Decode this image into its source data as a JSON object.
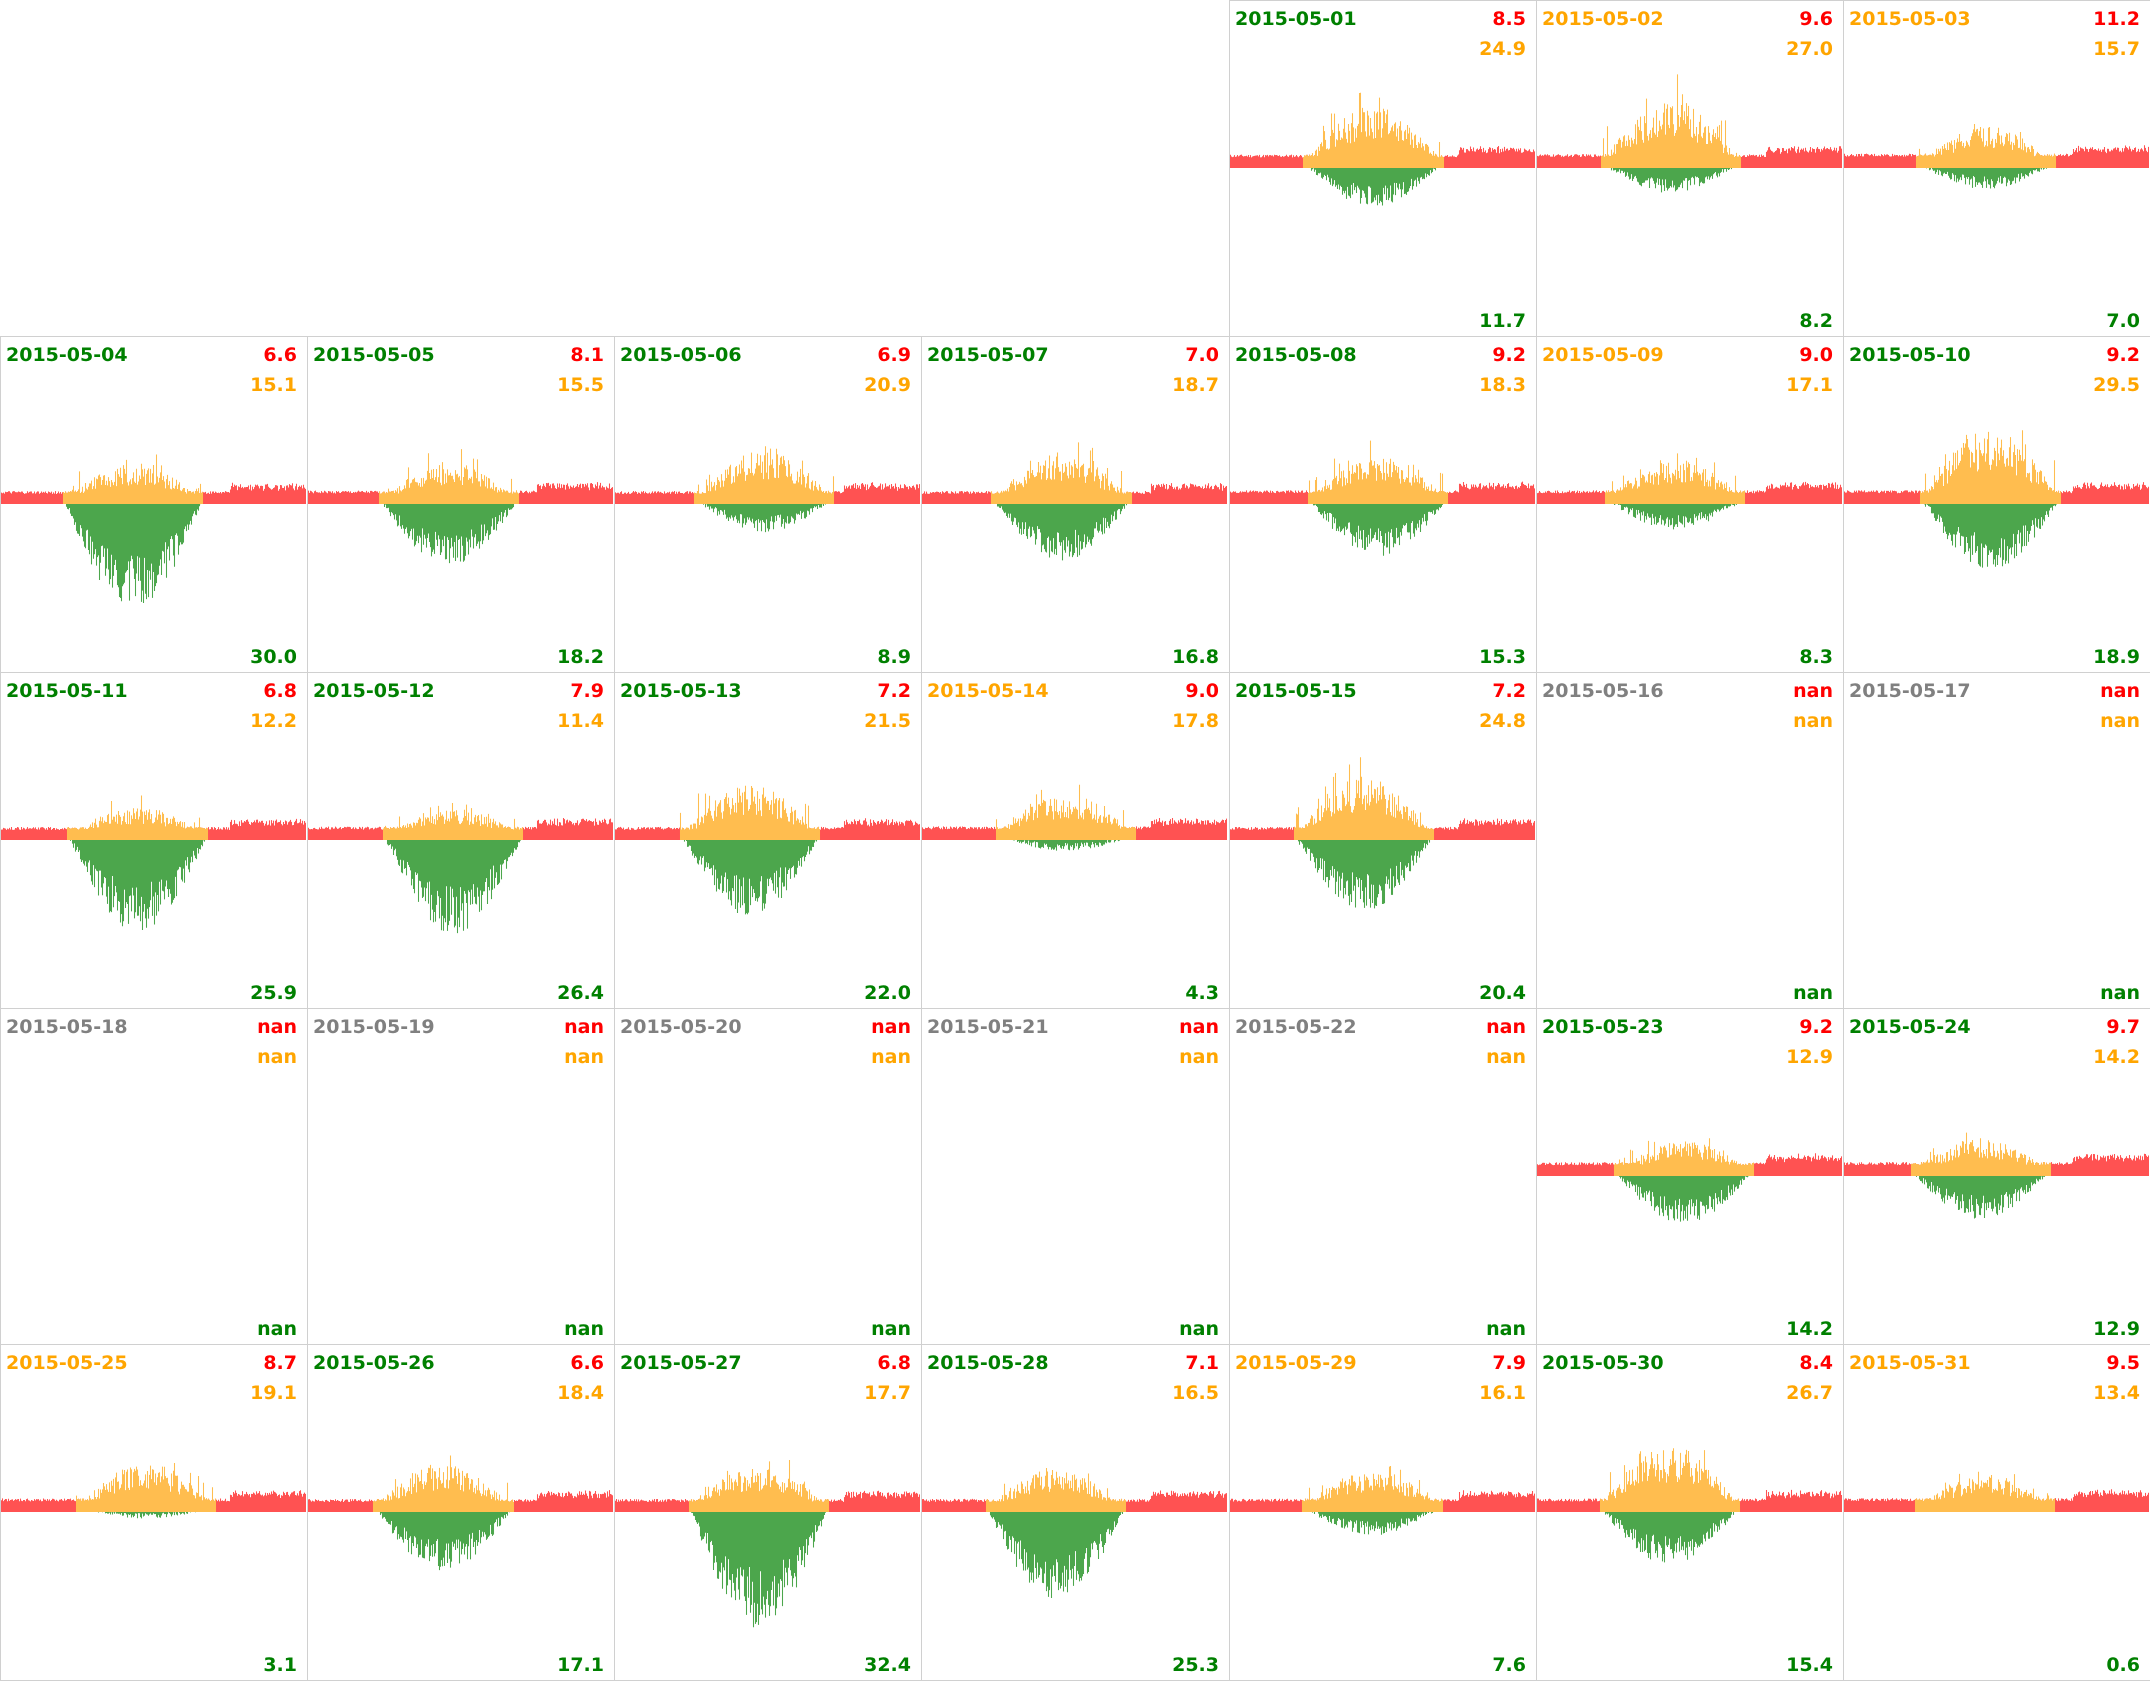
{
  "chart_data": {
    "type": "bar",
    "title": "",
    "layout": "calendar grid, 7 columns, week rows",
    "first_weekday_offset": 4,
    "legend": {
      "value1": "red top-right value",
      "value2": "orange second value",
      "value3": "green bottom value"
    },
    "colors": {
      "date_good": "#008000",
      "date_warn": "#ffa500",
      "date_nan": "#808080",
      "value1": "#ff0000",
      "value2": "#ffa500",
      "value3": "#008000",
      "fill_consumption": "#ff5252",
      "fill_production": "#ffbd4f",
      "fill_export": "#4ca64c"
    },
    "days": [
      {
        "date": "2015-05-01",
        "status": "good",
        "v1": "8.5",
        "v2": "24.9",
        "v3": "11.7"
      },
      {
        "date": "2015-05-02",
        "status": "warn",
        "v1": "9.6",
        "v2": "27.0",
        "v3": "8.2"
      },
      {
        "date": "2015-05-03",
        "status": "warn",
        "v1": "11.2",
        "v2": "15.7",
        "v3": "7.0"
      },
      {
        "date": "2015-05-04",
        "status": "good",
        "v1": "6.6",
        "v2": "15.1",
        "v3": "30.0"
      },
      {
        "date": "2015-05-05",
        "status": "good",
        "v1": "8.1",
        "v2": "15.5",
        "v3": "18.2"
      },
      {
        "date": "2015-05-06",
        "status": "good",
        "v1": "6.9",
        "v2": "20.9",
        "v3": "8.9"
      },
      {
        "date": "2015-05-07",
        "status": "good",
        "v1": "7.0",
        "v2": "18.7",
        "v3": "16.8"
      },
      {
        "date": "2015-05-08",
        "status": "good",
        "v1": "9.2",
        "v2": "18.3",
        "v3": "15.3"
      },
      {
        "date": "2015-05-09",
        "status": "warn",
        "v1": "9.0",
        "v2": "17.1",
        "v3": "8.3"
      },
      {
        "date": "2015-05-10",
        "status": "good",
        "v1": "9.2",
        "v2": "29.5",
        "v3": "18.9"
      },
      {
        "date": "2015-05-11",
        "status": "good",
        "v1": "6.8",
        "v2": "12.2",
        "v3": "25.9"
      },
      {
        "date": "2015-05-12",
        "status": "good",
        "v1": "7.9",
        "v2": "11.4",
        "v3": "26.4"
      },
      {
        "date": "2015-05-13",
        "status": "good",
        "v1": "7.2",
        "v2": "21.5",
        "v3": "22.0"
      },
      {
        "date": "2015-05-14",
        "status": "warn",
        "v1": "9.0",
        "v2": "17.8",
        "v3": "4.3"
      },
      {
        "date": "2015-05-15",
        "status": "good",
        "v1": "7.2",
        "v2": "24.8",
        "v3": "20.4"
      },
      {
        "date": "2015-05-16",
        "status": "nan",
        "v1": "nan",
        "v2": "nan",
        "v3": "nan"
      },
      {
        "date": "2015-05-17",
        "status": "nan",
        "v1": "nan",
        "v2": "nan",
        "v3": "nan"
      },
      {
        "date": "2015-05-18",
        "status": "nan",
        "v1": "nan",
        "v2": "nan",
        "v3": "nan"
      },
      {
        "date": "2015-05-19",
        "status": "nan",
        "v1": "nan",
        "v2": "nan",
        "v3": "nan"
      },
      {
        "date": "2015-05-20",
        "status": "nan",
        "v1": "nan",
        "v2": "nan",
        "v3": "nan"
      },
      {
        "date": "2015-05-21",
        "status": "nan",
        "v1": "nan",
        "v2": "nan",
        "v3": "nan"
      },
      {
        "date": "2015-05-22",
        "status": "nan",
        "v1": "nan",
        "v2": "nan",
        "v3": "nan"
      },
      {
        "date": "2015-05-23",
        "status": "good",
        "v1": "9.2",
        "v2": "12.9",
        "v3": "14.2"
      },
      {
        "date": "2015-05-24",
        "status": "good",
        "v1": "9.7",
        "v2": "14.2",
        "v3": "12.9"
      },
      {
        "date": "2015-05-25",
        "status": "warn",
        "v1": "8.7",
        "v2": "19.1",
        "v3": "3.1"
      },
      {
        "date": "2015-05-26",
        "status": "good",
        "v1": "6.6",
        "v2": "18.4",
        "v3": "17.1"
      },
      {
        "date": "2015-05-27",
        "status": "good",
        "v1": "6.8",
        "v2": "17.7",
        "v3": "32.4"
      },
      {
        "date": "2015-05-28",
        "status": "good",
        "v1": "7.1",
        "v2": "16.5",
        "v3": "25.3"
      },
      {
        "date": "2015-05-29",
        "status": "warn",
        "v1": "7.9",
        "v2": "16.1",
        "v3": "7.6"
      },
      {
        "date": "2015-05-30",
        "status": "good",
        "v1": "8.4",
        "v2": "26.7",
        "v3": "15.4"
      },
      {
        "date": "2015-05-31",
        "status": "warn",
        "v1": "9.5",
        "v2": "13.4",
        "v3": "0.6"
      }
    ]
  }
}
